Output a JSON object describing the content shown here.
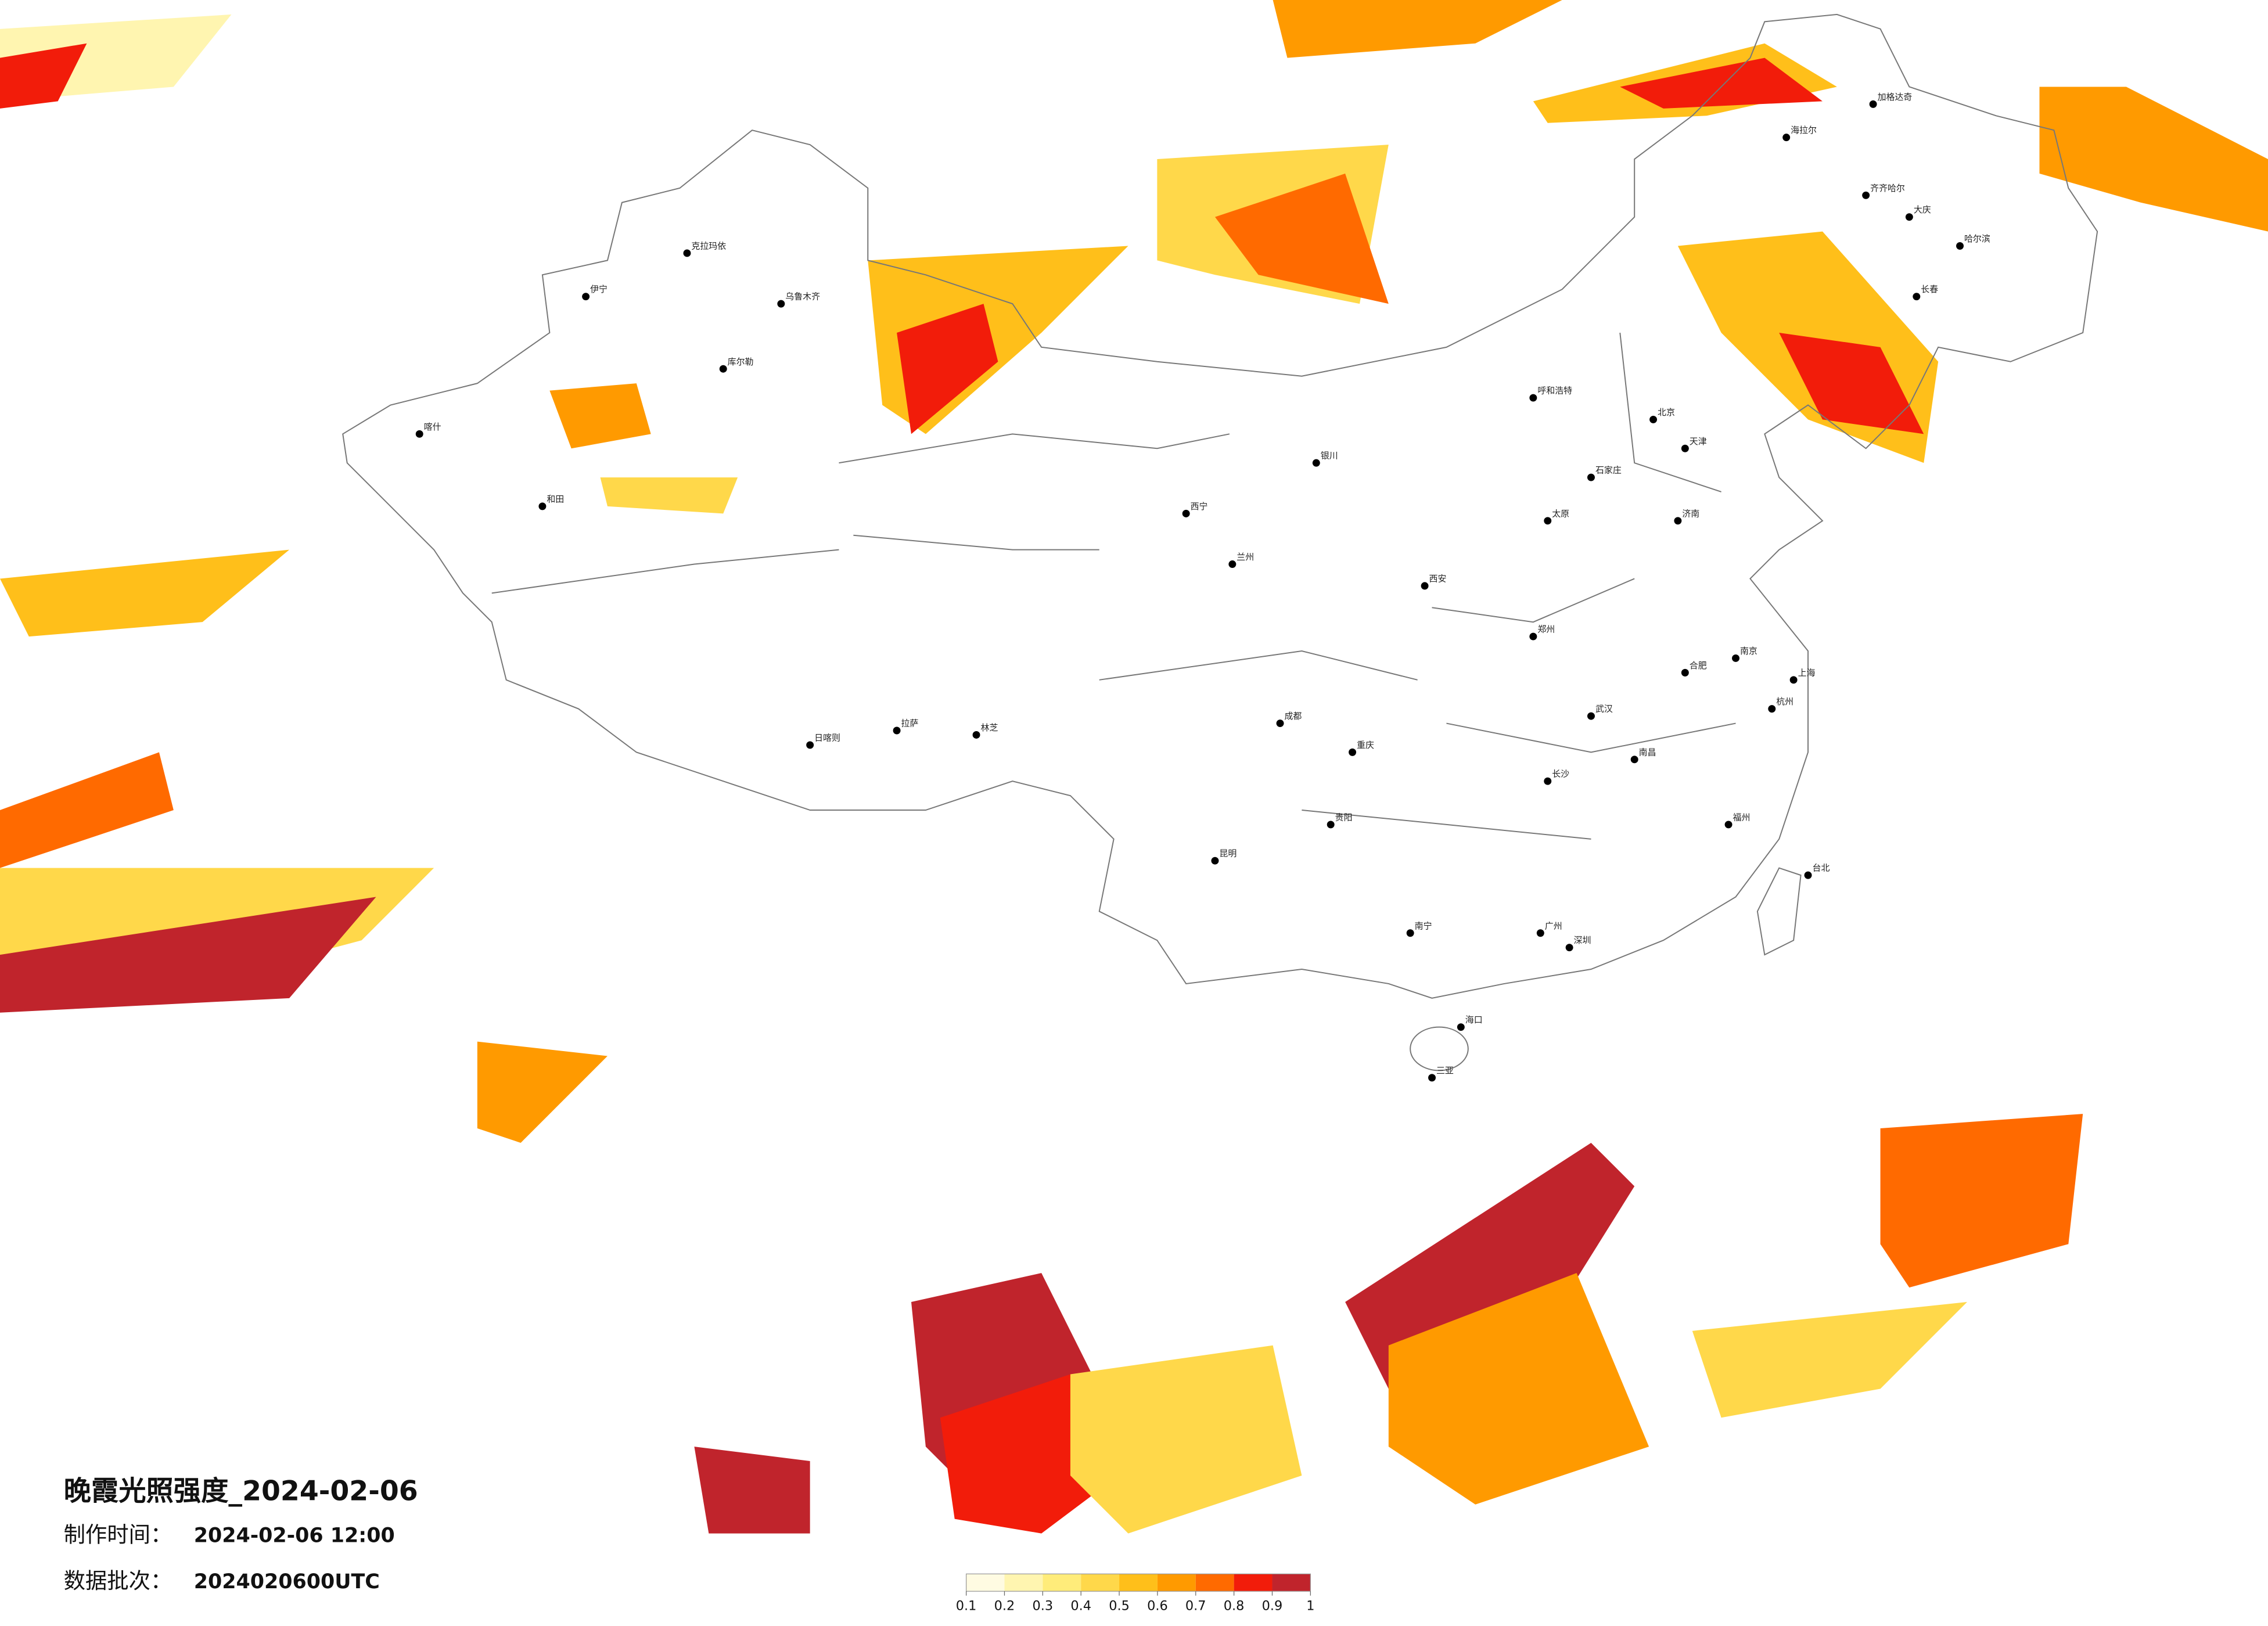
{
  "map": {
    "title": "晚霞光照强度_2024-02-06",
    "info": [
      {
        "label": "制作时间：",
        "value": "2024-02-06 12:00"
      },
      {
        "label": "数据批次：",
        "value": "2024020600UTC"
      }
    ],
    "legend": {
      "ticks": [
        0.1,
        0.2,
        0.3,
        0.4,
        0.5,
        0.6,
        0.7,
        0.8,
        0.9,
        1
      ],
      "colors": [
        "#fffbe2",
        "#fff5b0",
        "#ffec7a",
        "#ffd84a",
        "#ffbf1a",
        "#ff9a00",
        "#ff6a00",
        "#f21c0a",
        "#c0242c"
      ]
    },
    "cities": [
      "北京",
      "天津",
      "上海",
      "广州",
      "深圳",
      "武汉",
      "成都",
      "重庆",
      "西安",
      "兰州",
      "乌鲁木齐",
      "拉萨",
      "哈尔滨",
      "长春",
      "呼和浩特",
      "郑州",
      "南京",
      "杭州",
      "福州",
      "南昌",
      "长沙",
      "贵阳",
      "昆明",
      "南宁",
      "海口",
      "台北",
      "银川",
      "西宁",
      "济南",
      "太原",
      "石家庄",
      "合肥",
      "喀什",
      "和田",
      "伊宁",
      "克拉玛依",
      "库尔勒",
      "日喀则",
      "林芝",
      "三亚",
      "齐齐哈尔",
      "大庆",
      "海拉尔",
      "加格达奇"
    ]
  }
}
